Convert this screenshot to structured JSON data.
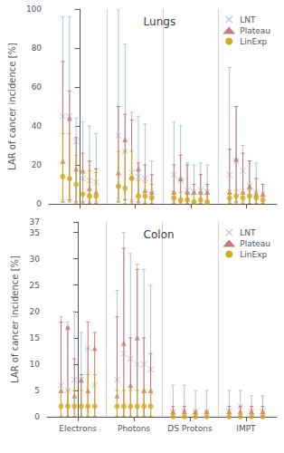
{
  "chart_data": [
    {
      "type": "scatter",
      "title": "Lungs",
      "ylabel": "LAR of cancer incidence [%]",
      "categories": [
        null,
        null,
        null,
        null
      ],
      "ylim": [
        0,
        100
      ],
      "yticks": [
        0,
        20,
        40,
        60,
        80,
        100
      ],
      "grid": false,
      "legend": "upper right",
      "tick_labels": "y",
      "series": [
        {
          "name": "LNT",
          "color": "#afc4d8",
          "marker": "x",
          "values": [
            [
              45,
              45,
              32,
              13,
              12,
              11
            ],
            [
              35,
              27,
              16,
              14,
              13,
              5
            ],
            [
              15,
              12,
              7,
              6,
              7,
              6
            ],
            [
              15,
              22,
              17,
              9,
              6,
              5
            ]
          ],
          "lo": [
            [
              2,
              2,
              1,
              1,
              1,
              1
            ],
            [
              3,
              2,
              2,
              1,
              1,
              0
            ],
            [
              1,
              1,
              0,
              0,
              0,
              0
            ],
            [
              1,
              1,
              1,
              0,
              0,
              0
            ]
          ],
          "hi": [
            [
              96,
              96,
              44,
              42,
              40,
              36
            ],
            [
              100,
              82,
              47,
              45,
              41,
              22
            ],
            [
              42,
              40,
              21,
              20,
              21,
              20
            ],
            [
              70,
              50,
              30,
              22,
              21,
              10
            ]
          ]
        },
        {
          "name": "Plateau",
          "color": "#c87878",
          "marker": "triangle",
          "values": [
            [
              22,
              44,
              18,
              17,
              8,
              6
            ],
            [
              16,
              33,
              14,
              18,
              7,
              6
            ],
            [
              6,
              13,
              6,
              6,
              6,
              6
            ],
            [
              6,
              23,
              6,
              9,
              5,
              5
            ]
          ],
          "lo": [
            [
              1,
              2,
              1,
              1,
              0,
              0
            ],
            [
              1,
              2,
              1,
              1,
              0,
              0
            ],
            [
              0,
              1,
              0,
              0,
              0,
              0
            ],
            [
              0,
              1,
              0,
              0,
              0,
              0
            ]
          ],
          "hi": [
            [
              73,
              58,
              34,
              26,
              22,
              18
            ],
            [
              50,
              46,
              43,
              21,
              20,
              15
            ],
            [
              20,
              25,
              20,
              10,
              15,
              10
            ],
            [
              28,
              50,
              26,
              22,
              13,
              10
            ]
          ]
        },
        {
          "name": "LinExp",
          "color": "#d4a820",
          "marker": "circle",
          "values": [
            [
              14,
              13,
              10,
              5,
              4,
              4
            ],
            [
              9,
              8,
              13,
              4,
              4,
              3
            ],
            [
              3,
              2,
              2,
              1,
              2,
              1
            ],
            [
              3,
              4,
              3,
              4,
              3,
              2
            ]
          ],
          "lo": [
            [
              1,
              1,
              0,
              0,
              0,
              0
            ],
            [
              1,
              0,
              0,
              0,
              0,
              0
            ],
            [
              0,
              0,
              0,
              0,
              0,
              0
            ],
            [
              0,
              0,
              0,
              0,
              0,
              0
            ]
          ],
          "hi": [
            [
              36,
              36,
              25,
              17,
              17,
              16
            ],
            [
              27,
              27,
              27,
              12,
              11,
              10
            ],
            [
              6,
              6,
              6,
              5,
              6,
              5
            ],
            [
              7,
              7,
              6,
              7,
              6,
              5
            ]
          ]
        }
      ]
    },
    {
      "type": "scatter",
      "title": "Colon",
      "ylabel": "LAR of cancer incidence [%]",
      "categories": [
        "Electrons",
        "Photons",
        "DS Protons",
        "IMPT"
      ],
      "ylim": [
        0,
        37
      ],
      "yticks": [
        0,
        5,
        10,
        15,
        20,
        25,
        30,
        35
      ],
      "grid": false,
      "legend": "upper right",
      "series": [
        {
          "name": "LNT",
          "color": "#afc4d8",
          "marker": "x",
          "values": [
            [
              6,
              5,
              7,
              7,
              13,
              6
            ],
            [
              7,
              12,
              11,
              10,
              10,
              9
            ],
            [
              1,
              1,
              1,
              1
            ],
            [
              1,
              2,
              1,
              1
            ]
          ],
          "lo": [
            [
              0,
              0,
              0,
              0,
              1,
              0
            ],
            [
              0,
              0,
              0,
              0,
              0,
              0
            ],
            [
              0,
              0,
              0,
              0
            ],
            [
              0,
              0,
              0,
              0
            ]
          ],
          "hi": [
            [
              19,
              18,
              20,
              16,
              13,
              8
            ],
            [
              24,
              35,
              31,
              29,
              28,
              25
            ],
            [
              6,
              6,
              5,
              5
            ],
            [
              5,
              5,
              4,
              4
            ]
          ]
        },
        {
          "name": "Plateau",
          "color": "#c87878",
          "marker": "triangle",
          "values": [
            [
              5,
              17,
              4,
              7,
              5,
              13
            ],
            [
              4,
              14,
              6,
              15,
              5,
              5
            ],
            [
              1,
              1,
              1,
              1
            ],
            [
              1,
              1,
              1,
              1
            ]
          ],
          "lo": [
            [
              0,
              0,
              0,
              0,
              0,
              0
            ],
            [
              0,
              0,
              0,
              0,
              0,
              0
            ],
            [
              0,
              0,
              0,
              0
            ],
            [
              0,
              0,
              0,
              0
            ]
          ],
          "hi": [
            [
              18,
              17,
              11,
              8,
              18,
              16
            ],
            [
              19,
              32,
              15,
              28,
              15,
              12
            ],
            [
              2,
              2,
              1,
              1
            ],
            [
              2,
              2,
              2,
              2
            ]
          ]
        },
        {
          "name": "LinExp",
          "color": "#d4a820",
          "marker": "circle",
          "values": [
            [
              2,
              2,
              2,
              2,
              2,
              2
            ],
            [
              2,
              2,
              2,
              2,
              2,
              2
            ],
            [
              0,
              0,
              0,
              0
            ],
            [
              0,
              0,
              0,
              0
            ]
          ],
          "lo": [
            [
              0,
              0,
              0,
              0,
              0,
              0
            ],
            [
              0,
              0,
              0,
              0,
              0,
              0
            ],
            [
              0,
              0,
              0,
              0
            ],
            [
              0,
              0,
              0,
              0
            ]
          ],
          "hi": [
            [
              5,
              5,
              5,
              5,
              8,
              8
            ],
            [
              5,
              5,
              5,
              5,
              5,
              5
            ],
            [
              1,
              1,
              1,
              1
            ],
            [
              1,
              1,
              1,
              1
            ]
          ]
        }
      ]
    }
  ]
}
